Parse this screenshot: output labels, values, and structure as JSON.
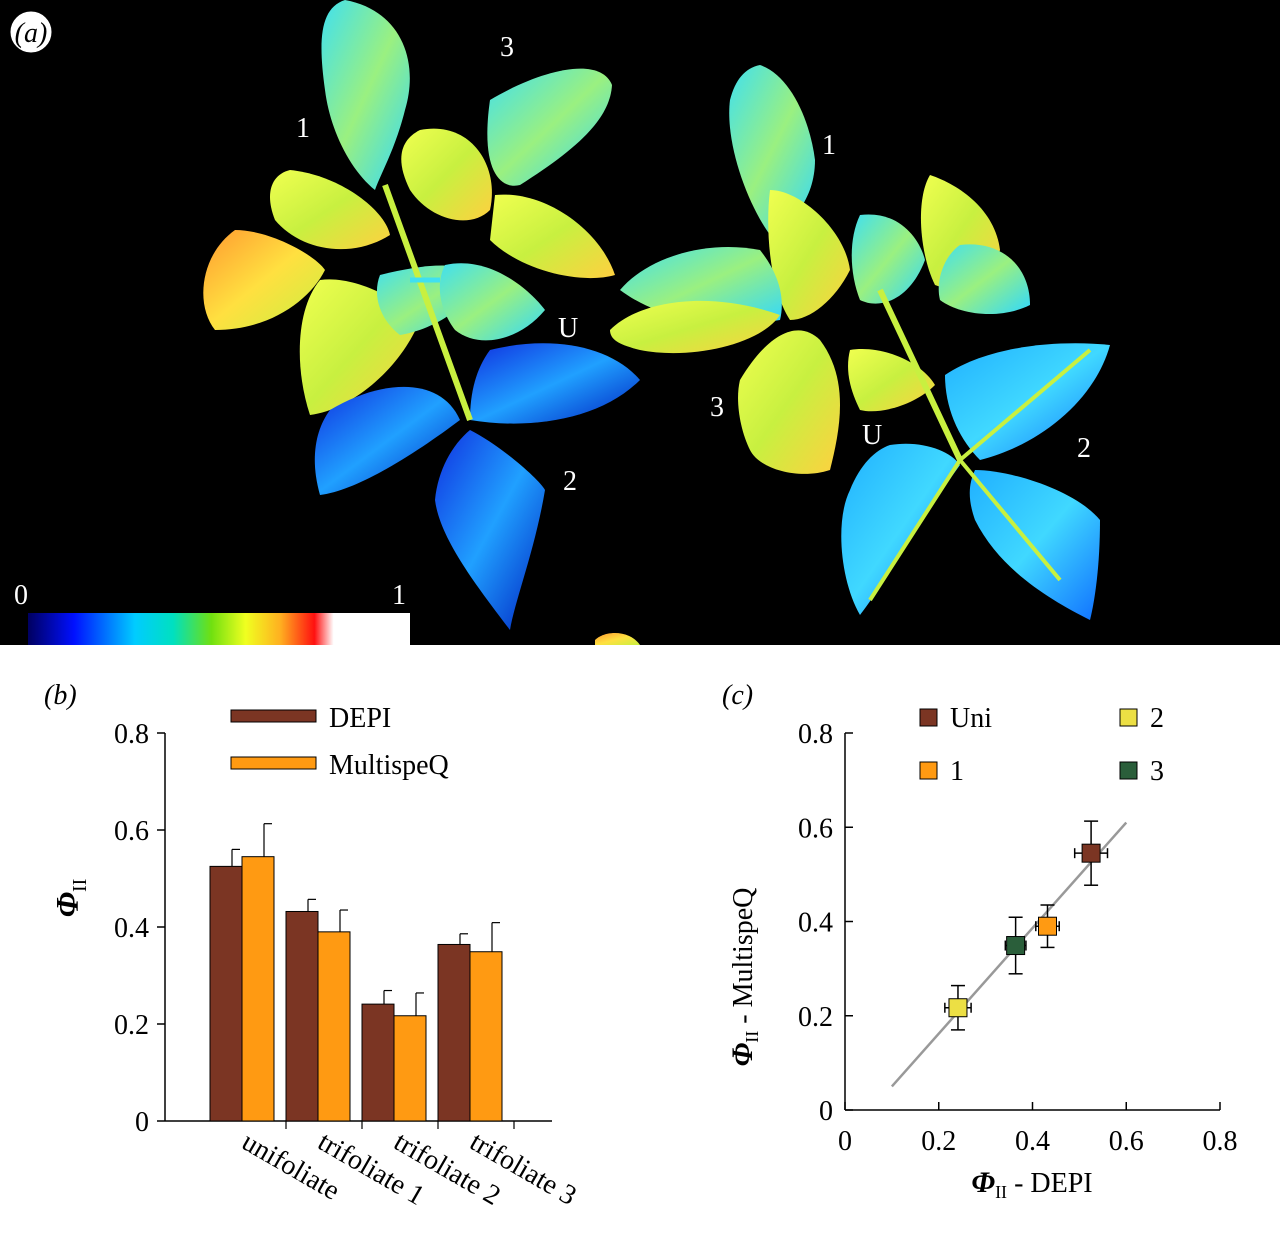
{
  "panel_a": {
    "label": "(a)",
    "colorbar": {
      "min_label": "0",
      "max_label": "1"
    },
    "plant_left": {
      "labels": [
        "1",
        "3",
        "U",
        "2"
      ]
    },
    "plant_right": {
      "labels": [
        "1",
        "3",
        "U",
        "2"
      ]
    },
    "colors": {
      "background": "#000000"
    }
  },
  "panel_b": {
    "label": "(b)",
    "chart_data": {
      "type": "bar",
      "ylabel": "Φ",
      "ylabel_sub": "II",
      "ylim": [
        0,
        0.8
      ],
      "yticks": [
        "0",
        "0.2",
        "0.4",
        "0.6",
        "0.8"
      ],
      "categories": [
        "unifoliate",
        "trifoliate 1",
        "trifoliate 2",
        "trifoliate 3"
      ],
      "series": [
        {
          "name": "DEPI",
          "color": "#7b3523",
          "values": [
            0.525,
            0.432,
            0.241,
            0.364
          ],
          "errors": [
            0.035,
            0.025,
            0.028,
            0.022
          ]
        },
        {
          "name": "MultispeQ",
          "color": "#ff9a12",
          "values": [
            0.545,
            0.39,
            0.217,
            0.349
          ],
          "errors": [
            0.068,
            0.045,
            0.047,
            0.06
          ]
        }
      ],
      "legend_placement": "top"
    }
  },
  "panel_c": {
    "label": "(c)",
    "chart_data": {
      "type": "scatter",
      "xlabel": "Φ",
      "xlabel_sub": "II",
      "xlabel_suffix": " - DEPI",
      "ylabel": "Φ",
      "ylabel_sub": "II",
      "ylabel_suffix": " - MultispeQ",
      "xlim": [
        0,
        0.8
      ],
      "ylim": [
        0,
        0.8
      ],
      "xticks": [
        "0",
        "0.2",
        "0.4",
        "0.6",
        "0.8"
      ],
      "yticks": [
        "0",
        "0.2",
        "0.4",
        "0.6",
        "0.8"
      ],
      "points": [
        {
          "name": "Uni",
          "color": "#7b3523",
          "x": 0.525,
          "y": 0.545,
          "xerr": 0.035,
          "yerr": 0.068
        },
        {
          "name": "1",
          "color": "#ff9a12",
          "x": 0.432,
          "y": 0.39,
          "xerr": 0.025,
          "yerr": 0.045
        },
        {
          "name": "2",
          "color": "#ecdf44",
          "x": 0.241,
          "y": 0.217,
          "xerr": 0.028,
          "yerr": 0.047
        },
        {
          "name": "3",
          "color": "#2a5e3a",
          "x": 0.364,
          "y": 0.349,
          "xerr": 0.022,
          "yerr": 0.06
        }
      ],
      "fit_line": {
        "x": [
          0.1,
          0.6
        ],
        "y": [
          0.05,
          0.61
        ],
        "color": "#999999"
      },
      "legend_placement": "top"
    }
  }
}
